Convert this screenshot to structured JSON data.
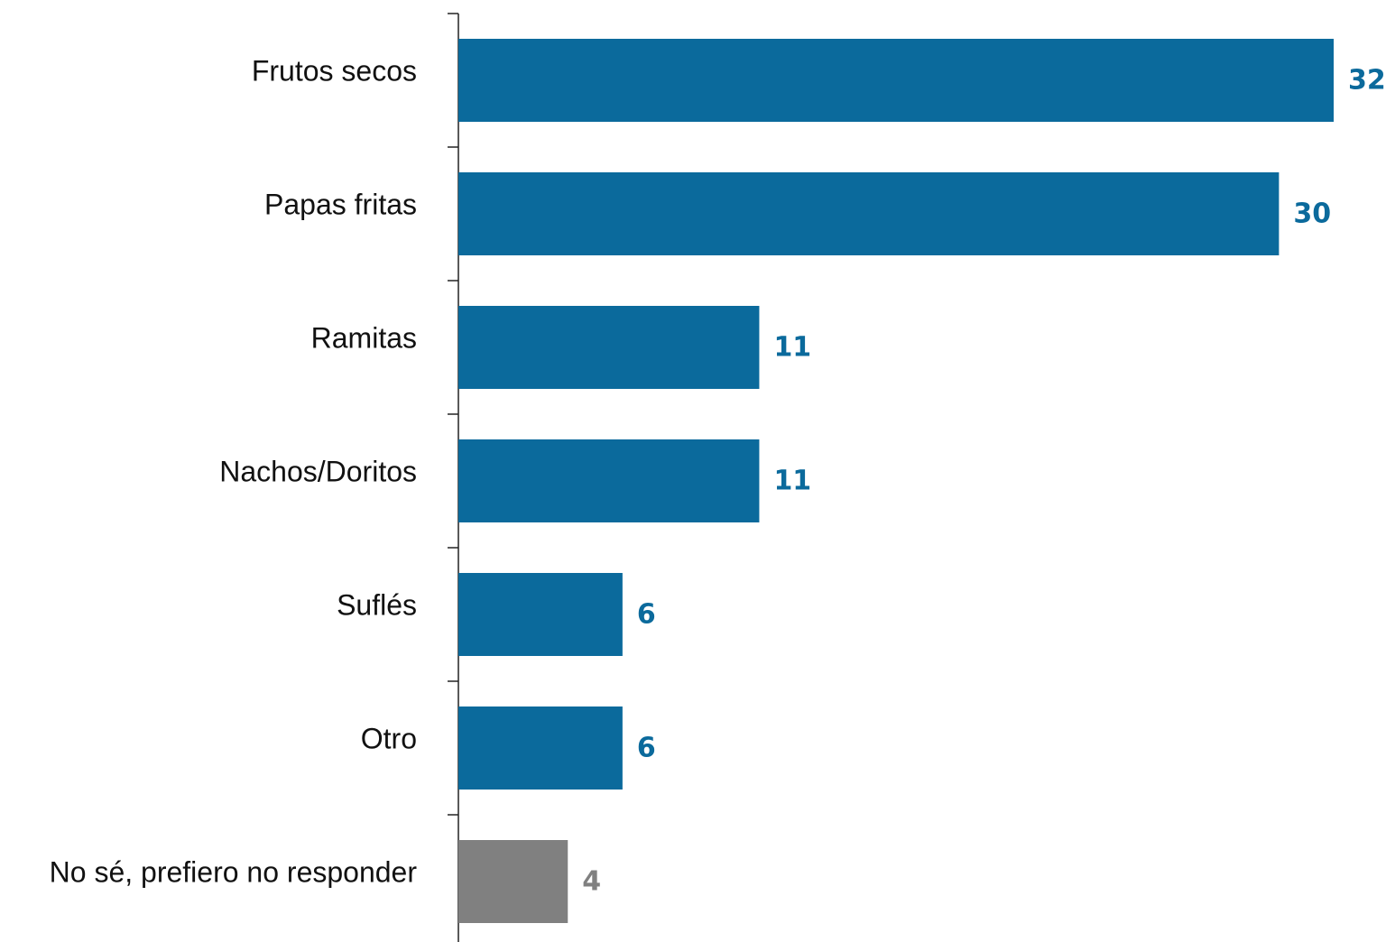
{
  "chart_data": {
    "type": "bar",
    "orientation": "horizontal",
    "categories": [
      "Frutos secos",
      "Papas fritas",
      "Ramitas",
      "Nachos/Doritos",
      "Suflés",
      "Otro",
      "No sé, prefiero no responder"
    ],
    "values": [
      32,
      30,
      11,
      11,
      6,
      6,
      4
    ],
    "bar_colors": [
      "#0b6a9c",
      "#0b6a9c",
      "#0b6a9c",
      "#0b6a9c",
      "#0b6a9c",
      "#0b6a9c",
      "#808080"
    ],
    "xlim": [
      0,
      32
    ],
    "grid": false,
    "legend": "none"
  }
}
